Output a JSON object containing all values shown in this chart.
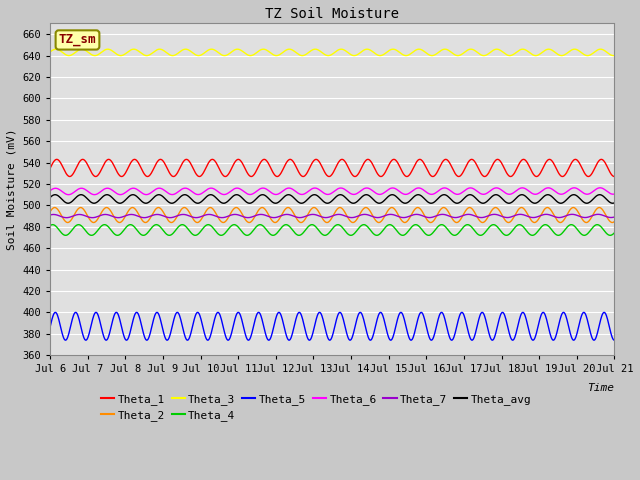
{
  "title": "TZ Soil Moisture",
  "xlabel": "Time",
  "ylabel": "Soil Moisture (mV)",
  "ylim": [
    360,
    670
  ],
  "yticks": [
    360,
    380,
    400,
    420,
    440,
    460,
    480,
    500,
    520,
    540,
    560,
    580,
    600,
    620,
    640,
    660
  ],
  "x_labels": [
    "Jul 6",
    "Jul 7",
    "Jul 8",
    "Jul 9",
    "Jul 10",
    "Jul 11",
    "Jul 12",
    "Jul 13",
    "Jul 14",
    "Jul 15",
    "Jul 16",
    "Jul 17",
    "Jul 18",
    "Jul 19",
    "Jul 20",
    "Jul 21"
  ],
  "fig_bg_color": "#c8c8c8",
  "plot_bg_color": "#e0e0e0",
  "grid_color": "#ffffff",
  "series": [
    {
      "name": "Theta_1",
      "color": "#ff0000",
      "base": 535,
      "amp": 8,
      "freq": 1.45,
      "phase": 0.0,
      "trend": 0.0
    },
    {
      "name": "Theta_2",
      "color": "#ff8c00",
      "base": 491,
      "amp": 7,
      "freq": 1.45,
      "phase": 0.5,
      "trend": 0.0
    },
    {
      "name": "Theta_3",
      "color": "#ffff00",
      "base": 643,
      "amp": 3,
      "freq": 1.45,
      "phase": 0.2,
      "trend": 0.0
    },
    {
      "name": "Theta_4",
      "color": "#00cc00",
      "base": 477,
      "amp": 5,
      "freq": 1.45,
      "phase": 1.0,
      "trend": 0.0
    },
    {
      "name": "Theta_5",
      "color": "#0000ff",
      "base": 387,
      "amp": 13,
      "freq": 1.85,
      "phase": 0.0,
      "trend": 0.0
    },
    {
      "name": "Theta_6",
      "color": "#ff00ff",
      "base": 513,
      "amp": 3,
      "freq": 1.45,
      "phase": 0.3,
      "trend": 0.003
    },
    {
      "name": "Theta_7",
      "color": "#9900cc",
      "base": 490,
      "amp": 1.5,
      "freq": 1.45,
      "phase": 0.8,
      "trend": 0.001
    },
    {
      "name": "Theta_avg",
      "color": "#000000",
      "base": 506,
      "amp": 4,
      "freq": 1.45,
      "phase": 0.4,
      "trend": 0.0
    }
  ],
  "legend_box_label": "TZ_sm",
  "legend_box_bg": "#ffffaa",
  "legend_box_edge": "#888800",
  "legend_text_color": "#880000"
}
